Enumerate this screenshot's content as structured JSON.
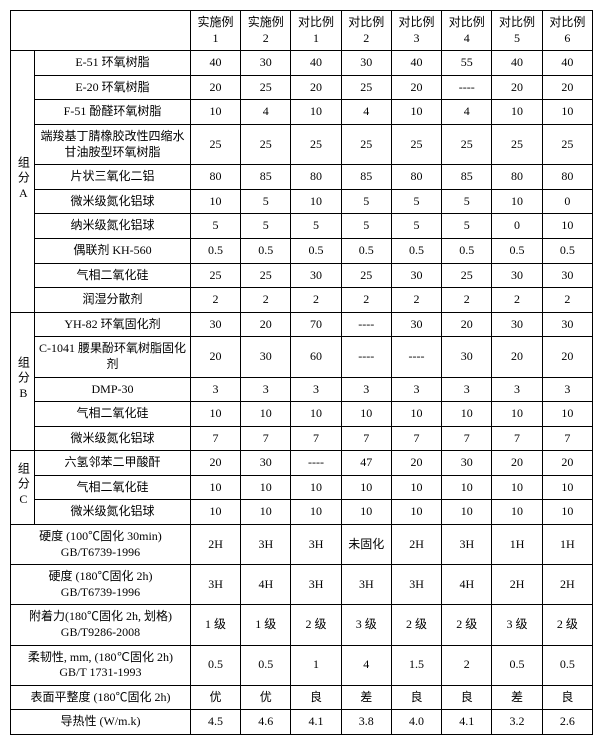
{
  "headers": [
    "实施例 1",
    "实施例 2",
    "对比例 1",
    "对比例 2",
    "对比例 3",
    "对比例 4",
    "对比例 5",
    "对比例 6"
  ],
  "groupA": {
    "label": "组分A",
    "rows": [
      {
        "name": "E-51 环氧树脂",
        "v": [
          "40",
          "30",
          "40",
          "30",
          "40",
          "55",
          "40",
          "40"
        ]
      },
      {
        "name": "E-20 环氧树脂",
        "v": [
          "20",
          "25",
          "20",
          "25",
          "20",
          "----",
          "20",
          "20"
        ]
      },
      {
        "name": "F-51 酚醛环氧树脂",
        "v": [
          "10",
          "4",
          "10",
          "4",
          "10",
          "4",
          "10",
          "10"
        ]
      },
      {
        "name": "端羧基丁腈橡胶改性四缩水甘油胺型环氧树脂",
        "v": [
          "25",
          "25",
          "25",
          "25",
          "25",
          "25",
          "25",
          "25"
        ]
      },
      {
        "name": "片状三氧化二铝",
        "v": [
          "80",
          "85",
          "80",
          "85",
          "80",
          "85",
          "80",
          "80"
        ]
      },
      {
        "name": "微米级氮化铝球",
        "v": [
          "10",
          "5",
          "10",
          "5",
          "5",
          "5",
          "10",
          "0"
        ]
      },
      {
        "name": "纳米级氮化铝球",
        "v": [
          "5",
          "5",
          "5",
          "5",
          "5",
          "5",
          "0",
          "10"
        ]
      },
      {
        "name": "偶联剂 KH-560",
        "v": [
          "0.5",
          "0.5",
          "0.5",
          "0.5",
          "0.5",
          "0.5",
          "0.5",
          "0.5"
        ]
      },
      {
        "name": "气相二氧化硅",
        "v": [
          "25",
          "25",
          "30",
          "25",
          "30",
          "25",
          "30",
          "30"
        ]
      },
      {
        "name": "润湿分散剂",
        "v": [
          "2",
          "2",
          "2",
          "2",
          "2",
          "2",
          "2",
          "2"
        ]
      }
    ]
  },
  "groupB": {
    "label": "组分B",
    "rows": [
      {
        "name": "YH-82 环氧固化剂",
        "v": [
          "30",
          "20",
          "70",
          "----",
          "30",
          "20",
          "30",
          "30"
        ]
      },
      {
        "name": "C-1041 腰果酚环氧树脂固化剂",
        "v": [
          "20",
          "30",
          "60",
          "----",
          "----",
          "30",
          "20",
          "20"
        ]
      },
      {
        "name": "DMP-30",
        "v": [
          "3",
          "3",
          "3",
          "3",
          "3",
          "3",
          "3",
          "3"
        ]
      },
      {
        "name": "气相二氧化硅",
        "v": [
          "10",
          "10",
          "10",
          "10",
          "10",
          "10",
          "10",
          "10"
        ]
      },
      {
        "name": "微米级氮化铝球",
        "v": [
          "7",
          "7",
          "7",
          "7",
          "7",
          "7",
          "7",
          "7"
        ]
      }
    ]
  },
  "groupC": {
    "label": "组分C",
    "rows": [
      {
        "name": "六氢邻苯二甲酸酐",
        "v": [
          "20",
          "30",
          "----",
          "47",
          "20",
          "30",
          "20",
          "20"
        ]
      },
      {
        "name": "气相二氧化硅",
        "v": [
          "10",
          "10",
          "10",
          "10",
          "10",
          "10",
          "10",
          "10"
        ]
      },
      {
        "name": "微米级氮化铝球",
        "v": [
          "10",
          "10",
          "10",
          "10",
          "10",
          "10",
          "10",
          "10"
        ]
      }
    ]
  },
  "tests": [
    {
      "name": "硬度 (100℃固化 30min)\nGB/T6739-1996",
      "v": [
        "2H",
        "3H",
        "3H",
        "未固化",
        "2H",
        "3H",
        "1H",
        "1H"
      ]
    },
    {
      "name": "硬度 (180℃固化 2h)\nGB/T6739-1996",
      "v": [
        "3H",
        "4H",
        "3H",
        "3H",
        "3H",
        "4H",
        "2H",
        "2H"
      ]
    },
    {
      "name": "附着力(180℃固化 2h, 划格)\nGB/T9286-2008",
      "v": [
        "1 级",
        "1 级",
        "2 级",
        "3 级",
        "2 级",
        "2 级",
        "3 级",
        "2 级"
      ]
    },
    {
      "name": "柔韧性, mm, (180℃固化 2h)\nGB/T 1731-1993",
      "v": [
        "0.5",
        "0.5",
        "1",
        "4",
        "1.5",
        "2",
        "0.5",
        "0.5"
      ]
    },
    {
      "name": "表面平整度 (180℃固化 2h)",
      "v": [
        "优",
        "优",
        "良",
        "差",
        "良",
        "良",
        "差",
        "良"
      ]
    },
    {
      "name": "导热性 (W/m.k)",
      "v": [
        "4.5",
        "4.6",
        "4.1",
        "3.8",
        "4.0",
        "4.1",
        "3.2",
        "2.6"
      ]
    }
  ]
}
